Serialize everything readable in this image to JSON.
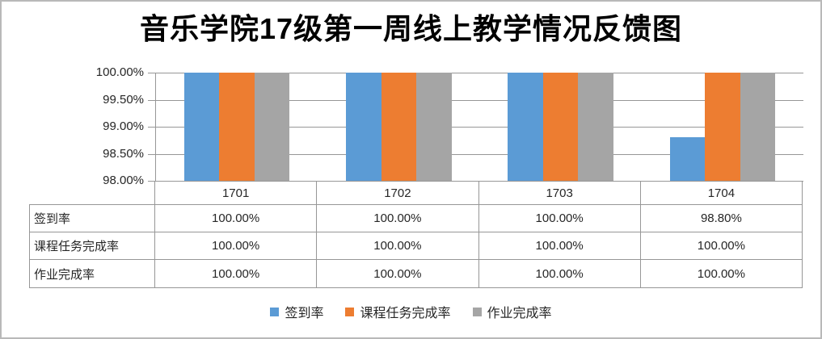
{
  "title": "音乐学院17级第一周线上教学情况反馈图",
  "chart_data": {
    "type": "bar",
    "title": "音乐学院17级第一周线上教学情况反馈图",
    "categories": [
      "1701",
      "1702",
      "1703",
      "1704"
    ],
    "series": [
      {
        "name": "签到率",
        "color": "#5B9BD5",
        "values": [
          100.0,
          100.0,
          100.0,
          98.8
        ]
      },
      {
        "name": "课程任务完成率",
        "color": "#ED7D31",
        "values": [
          100.0,
          100.0,
          100.0,
          100.0
        ]
      },
      {
        "name": "作业完成率",
        "color": "#A5A5A5",
        "values": [
          100.0,
          100.0,
          100.0,
          100.0
        ]
      }
    ],
    "ylim": [
      98.0,
      100.0
    ],
    "yticks": [
      {
        "value": 100.0,
        "label": "100.00%"
      },
      {
        "value": 99.5,
        "label": "99.50%"
      },
      {
        "value": 99.0,
        "label": "99.00%"
      },
      {
        "value": 98.5,
        "label": "98.50%"
      },
      {
        "value": 98.0,
        "label": "98.00%"
      }
    ],
    "grid": true,
    "legend_position": "bottom",
    "data_table": {
      "rows": [
        {
          "label": "签到率",
          "cells": [
            "100.00%",
            "100.00%",
            "100.00%",
            "98.80%"
          ]
        },
        {
          "label": "课程任务完成率",
          "cells": [
            "100.00%",
            "100.00%",
            "100.00%",
            "100.00%"
          ]
        },
        {
          "label": "作业完成率",
          "cells": [
            "100.00%",
            "100.00%",
            "100.00%",
            "100.00%"
          ]
        }
      ]
    }
  },
  "colors": {
    "gridline": "#979797",
    "table_border": "#979797",
    "text": "#262626",
    "title_text": "#000000"
  }
}
